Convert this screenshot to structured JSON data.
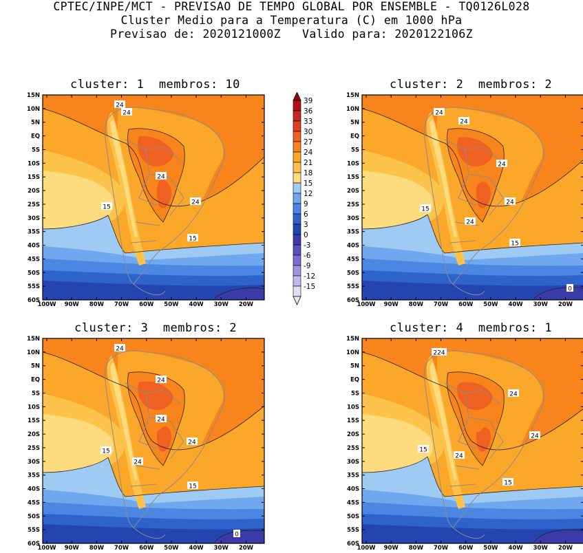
{
  "header": {
    "line1": "CPTEC/INPE/MCT - PREVISAO DE TEMPO GLOBAL POR ENSEMBLE - TQ0126L028",
    "line2": "Cluster Medio para a Temperatura (C) em 1000 hPa",
    "line3": "Previsao de: 2020121000Z   Valido para: 2020122106Z"
  },
  "panels": [
    {
      "title": "cluster: 1  membros: 10",
      "contour_labels": [
        "24",
        "24",
        "24",
        "24",
        "15",
        "15"
      ]
    },
    {
      "title": "cluster: 2  membros: 2",
      "contour_labels": [
        "24",
        "24",
        "24",
        "24",
        "24",
        "15",
        "15",
        "0"
      ]
    },
    {
      "title": "cluster: 3  membros: 2",
      "contour_labels": [
        "24",
        "24",
        "24",
        "24",
        "24",
        "15",
        "15",
        "0"
      ]
    },
    {
      "title": "cluster: 4  membros: 1",
      "contour_labels": [
        "224",
        "24",
        "24",
        "24",
        "15",
        "15"
      ]
    }
  ],
  "axes": {
    "lat_ticks": [
      "15N",
      "10N",
      "5N",
      "EQ",
      "5S",
      "10S",
      "15S",
      "20S",
      "25S",
      "30S",
      "35S",
      "40S",
      "45S",
      "50S",
      "55S",
      "60S"
    ],
    "lon_ticks": [
      "100W",
      "90W",
      "80W",
      "70W",
      "60W",
      "50W",
      "40W",
      "30W",
      "20W"
    ]
  },
  "colorbar": {
    "labels": [
      "39",
      "36",
      "33",
      "30",
      "27",
      "24",
      "21",
      "18",
      "15",
      "12",
      "9",
      "6",
      "3",
      "0",
      "-3",
      "-6",
      "-9",
      "-12",
      "-15"
    ],
    "colors": [
      "#b0101a",
      "#c8281f",
      "#e0401f",
      "#f06020",
      "#f8841c",
      "#fba72a",
      "#fdc34a",
      "#fcdc7e",
      "#9ecaf4",
      "#6fa8ee",
      "#4a86e2",
      "#2f63cc",
      "#2445b0",
      "#3a3aa8",
      "#5a4ec0",
      "#7c6dd0",
      "#a093de",
      "#c4b8ea",
      "#e2dcf4"
    ],
    "top_triangle": "#8e0b12",
    "bottom_triangle": "#ece8f8"
  },
  "colors": {
    "land_outline": "#8c8c8c",
    "contour": "#222222"
  }
}
